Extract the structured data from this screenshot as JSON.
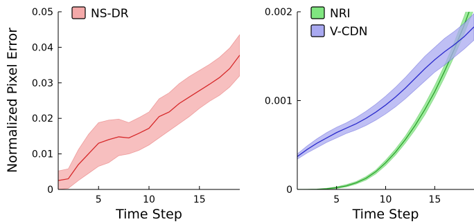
{
  "chart_data": [
    {
      "type": "line",
      "xlabel": "Time Step",
      "ylabel": "Normalized Pixel Error",
      "xlim": [
        1,
        19
      ],
      "ylim": [
        0,
        0.05
      ],
      "xticks": [
        5,
        10,
        15
      ],
      "xtick_labels": [
        "5",
        "10",
        "15"
      ],
      "yticks": [
        0,
        0.01,
        0.02,
        0.03,
        0.04,
        0.05
      ],
      "ytick_labels": [
        "0",
        "0.01",
        "0.02",
        "0.03",
        "0.04",
        "0.05"
      ],
      "grid": false,
      "legend_position": "top-left",
      "series": [
        {
          "name": "NS-DR",
          "color": "#d62728",
          "fill_color": "#f4a9a9",
          "x": [
            1,
            2,
            3,
            4,
            5,
            6,
            7,
            8,
            9,
            10,
            11,
            12,
            13,
            14,
            15,
            16,
            17,
            18,
            19
          ],
          "values": [
            0.0025,
            0.003,
            0.007,
            0.01,
            0.013,
            0.014,
            0.0148,
            0.0145,
            0.0158,
            0.0172,
            0.0205,
            0.0218,
            0.0242,
            0.026,
            0.0278,
            0.0296,
            0.0315,
            0.034,
            0.0378
          ],
          "lower": [
            0.0,
            0.0003,
            0.0025,
            0.0045,
            0.0065,
            0.0075,
            0.0095,
            0.01,
            0.011,
            0.0125,
            0.0145,
            0.0165,
            0.0185,
            0.0205,
            0.0228,
            0.0248,
            0.0265,
            0.0288,
            0.032
          ],
          "upper": [
            0.0052,
            0.0058,
            0.0112,
            0.0155,
            0.0188,
            0.0195,
            0.0198,
            0.0188,
            0.0202,
            0.0218,
            0.0255,
            0.0272,
            0.0298,
            0.0318,
            0.0335,
            0.0352,
            0.0372,
            0.0398,
            0.0436
          ]
        }
      ]
    },
    {
      "type": "line",
      "xlabel": "Time Step",
      "ylabel": "",
      "xlim": [
        1,
        19
      ],
      "ylim": [
        0,
        0.002
      ],
      "xticks": [
        5,
        10,
        15
      ],
      "xtick_labels": [
        "5",
        "10",
        "15"
      ],
      "yticks": [
        0,
        0.001,
        0.002
      ],
      "ytick_labels": [
        "0",
        "0.001",
        "0.002"
      ],
      "grid": false,
      "legend_position": "top-left",
      "series": [
        {
          "name": "NRI",
          "color": "#2ca02c",
          "fill_color": "#80e680",
          "x": [
            1,
            2,
            3,
            4,
            5,
            6,
            7,
            8,
            9,
            10,
            11,
            12,
            13,
            14,
            15,
            16,
            17,
            18,
            19
          ],
          "values": [
            0.0,
            0.0,
            2e-06,
            8e-06,
            2e-05,
            4e-05,
            7.5e-05,
            0.000125,
            0.0002,
            0.0003,
            0.00042,
            0.00056,
            0.00072,
            0.0009,
            0.0011,
            0.00133,
            0.00158,
            0.00185,
            0.00215
          ],
          "lower": [
            0.0,
            0.0,
            0.0,
            3e-06,
            1e-05,
            2.8e-05,
            6e-05,
            0.000105,
            0.000175,
            0.00027,
            0.000385,
            0.00052,
            0.00067,
            0.00084,
            0.00104,
            0.00126,
            0.0015,
            0.00175,
            0.00203
          ],
          "upper": [
            0.0,
            2e-06,
            5e-06,
            1.4e-05,
            3e-05,
            5.5e-05,
            9e-05,
            0.000145,
            0.00022,
            0.00033,
            0.000455,
            0.0006,
            0.00077,
            0.00096,
            0.00117,
            0.0014,
            0.00166,
            0.00195,
            0.00227
          ]
        },
        {
          "name": "V-CDN",
          "color": "#2b2bcc",
          "fill_color": "#a9a9f0",
          "x": [
            1,
            2,
            3,
            4,
            5,
            6,
            7,
            8,
            9,
            10,
            11,
            12,
            13,
            14,
            15,
            16,
            17,
            18,
            19
          ],
          "values": [
            0.00037,
            0.00045,
            0.00052,
            0.00058,
            0.00064,
            0.00069,
            0.00074,
            0.0008,
            0.00087,
            0.00095,
            0.00104,
            0.00114,
            0.00125,
            0.00136,
            0.00146,
            0.00155,
            0.00163,
            0.00172,
            0.00183
          ],
          "lower": [
            0.00034,
            0.00041,
            0.00047,
            0.00053,
            0.00058,
            0.00063,
            0.00067,
            0.00072,
            0.00078,
            0.00085,
            0.00093,
            0.00102,
            0.00112,
            0.00122,
            0.00132,
            0.0014,
            0.00149,
            0.00158,
            0.00168
          ],
          "upper": [
            0.0004,
            0.00049,
            0.00057,
            0.00064,
            0.0007,
            0.00075,
            0.00081,
            0.00088,
            0.00096,
            0.00105,
            0.00115,
            0.00126,
            0.00138,
            0.0015,
            0.0016,
            0.0017,
            0.00178,
            0.00187,
            0.00198
          ]
        }
      ]
    }
  ]
}
